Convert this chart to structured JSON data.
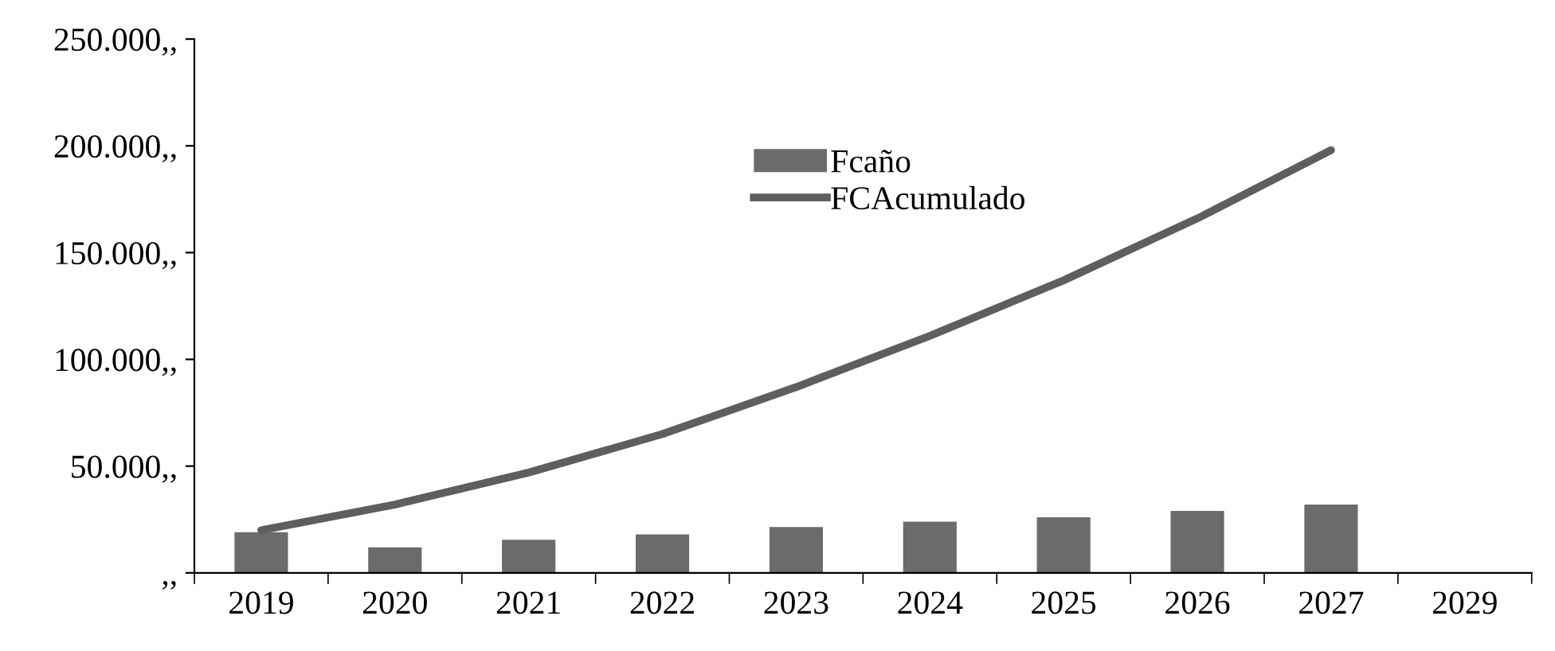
{
  "chart_data": {
    "type": "bar",
    "categories": [
      "2019",
      "2020",
      "2021",
      "2022",
      "2023",
      "2024",
      "2025",
      "2026",
      "2027",
      "2029"
    ],
    "series": [
      {
        "name": "Fcaño",
        "color": "#6b6b6b",
        "values": [
          19000,
          12000,
          15500,
          18000,
          21500,
          24000,
          26000,
          29000,
          32000,
          null
        ]
      },
      {
        "name": "FCAcumulado",
        "type": "line",
        "color": "#5e5e5e",
        "values": [
          20000,
          32000,
          47000,
          65000,
          87000,
          111000,
          137000,
          166000,
          198000,
          null
        ]
      }
    ],
    "ylim": [
      0,
      250000
    ],
    "yticks": [
      {
        "value": 0,
        "label": ",,"
      },
      {
        "value": 50000,
        "label": "50.000,,"
      },
      {
        "value": 100000,
        "label": "100.000,,"
      },
      {
        "value": 150000,
        "label": "150.000,,"
      },
      {
        "value": 200000,
        "label": "200.000,,"
      },
      {
        "value": 250000,
        "label": "250.000,,"
      }
    ],
    "grid": false,
    "legend": "top",
    "marker": "none",
    "line_style": "solid"
  }
}
